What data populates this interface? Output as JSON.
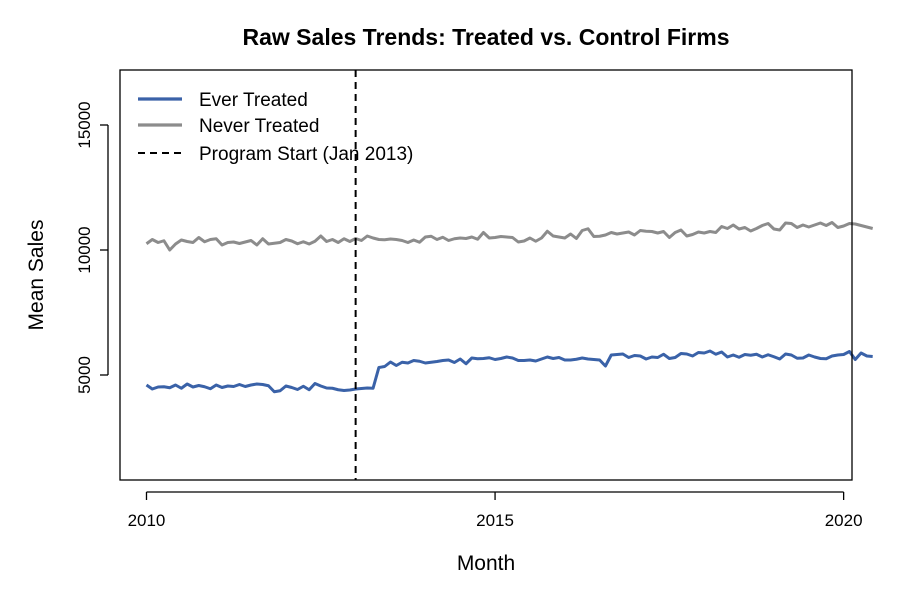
{
  "chart_data": {
    "type": "line",
    "title": "Raw Sales Trends: Treated vs. Control Firms",
    "xlabel": "Month",
    "ylabel": "Mean Sales",
    "x_ticks": [
      2010,
      2015,
      2020
    ],
    "y_ticks": [
      5000,
      10000,
      15000
    ],
    "xlim": [
      2009.62,
      2020.12
    ],
    "ylim": [
      800,
      17200
    ],
    "grid": false,
    "legend_position": "top-left",
    "x_start": "2010-01",
    "x_step": "month",
    "series": [
      {
        "name": "Ever Treated",
        "color": "#3a62a8",
        "style": "solid",
        "values": [
          4600,
          4440,
          4520,
          4530,
          4490,
          4600,
          4470,
          4640,
          4520,
          4580,
          4530,
          4450,
          4600,
          4500,
          4560,
          4540,
          4620,
          4540,
          4600,
          4640,
          4620,
          4570,
          4330,
          4370,
          4560,
          4500,
          4420,
          4550,
          4410,
          4660,
          4560,
          4480,
          4470,
          4410,
          4380,
          4400,
          4440,
          4460,
          4480,
          4470,
          5300,
          5340,
          5520,
          5380,
          5510,
          5480,
          5580,
          5550,
          5480,
          5510,
          5540,
          5580,
          5600,
          5500,
          5640,
          5450,
          5680,
          5650,
          5660,
          5690,
          5620,
          5660,
          5720,
          5680,
          5580,
          5580,
          5600,
          5560,
          5640,
          5720,
          5660,
          5700,
          5600,
          5600,
          5630,
          5680,
          5640,
          5620,
          5600,
          5360,
          5800,
          5820,
          5840,
          5700,
          5780,
          5760,
          5640,
          5720,
          5700,
          5830,
          5660,
          5700,
          5860,
          5840,
          5760,
          5900,
          5880,
          5960,
          5830,
          5920,
          5720,
          5800,
          5710,
          5820,
          5790,
          5830,
          5720,
          5810,
          5730,
          5640,
          5840,
          5800,
          5670,
          5680,
          5800,
          5720,
          5660,
          5650,
          5760,
          5800,
          5820,
          5940,
          5620,
          5880,
          5760,
          5740
        ]
      },
      {
        "name": "Never Treated",
        "color": "#8c8c8c",
        "style": "solid",
        "values": [
          10250,
          10420,
          10300,
          10370,
          10000,
          10240,
          10400,
          10340,
          10300,
          10500,
          10330,
          10420,
          10450,
          10200,
          10300,
          10320,
          10260,
          10320,
          10380,
          10200,
          10450,
          10240,
          10270,
          10300,
          10420,
          10360,
          10250,
          10330,
          10240,
          10350,
          10560,
          10340,
          10420,
          10300,
          10450,
          10340,
          10460,
          10380,
          10560,
          10480,
          10420,
          10410,
          10440,
          10420,
          10380,
          10300,
          10400,
          10310,
          10520,
          10550,
          10420,
          10510,
          10380,
          10450,
          10480,
          10460,
          10520,
          10430,
          10700,
          10480,
          10500,
          10540,
          10520,
          10500,
          10320,
          10360,
          10480,
          10350,
          10480,
          10750,
          10560,
          10520,
          10480,
          10640,
          10460,
          10780,
          10850,
          10540,
          10550,
          10600,
          10700,
          10640,
          10680,
          10720,
          10600,
          10780,
          10750,
          10740,
          10680,
          10740,
          10500,
          10700,
          10800,
          10560,
          10620,
          10720,
          10680,
          10740,
          10700,
          10940,
          10860,
          11000,
          10840,
          10900,
          10760,
          10860,
          10980,
          11060,
          10840,
          10800,
          11080,
          11060,
          10900,
          11000,
          10920,
          11000,
          11080,
          10980,
          11100,
          10900,
          10960,
          11060,
          11040,
          10980,
          10920,
          10860
        ]
      }
    ],
    "annotations": [
      {
        "type": "vline",
        "x": 2013.0,
        "label": "Program Start (Jan 2013)",
        "color": "#000000",
        "style": "dashed"
      }
    ]
  }
}
